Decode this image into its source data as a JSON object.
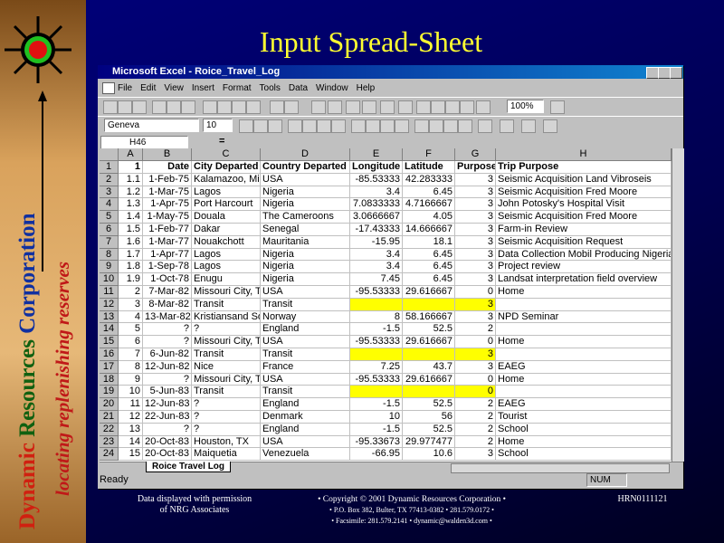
{
  "slide": {
    "title": "Input Spread-Sheet",
    "brand": {
      "word1": "Dynamic",
      "word2": "Resources",
      "word3": "Corporation",
      "tagline": "locating replenishing reserves"
    }
  },
  "window": {
    "title": "Microsoft Excel - Roice_Travel_Log",
    "menu": [
      "File",
      "Edit",
      "View",
      "Insert",
      "Format",
      "Tools",
      "Data",
      "Window",
      "Help"
    ],
    "font": "Geneva",
    "font_size": "10",
    "zoom": "100%",
    "name_box": "H46",
    "formula": "=",
    "sheet_tab": "Roice Travel Log",
    "status": "Ready",
    "status_mode": "NUM"
  },
  "table": {
    "columns": [
      "A",
      "B",
      "C",
      "D",
      "E",
      "F",
      "G",
      "H"
    ],
    "row_numbers": [
      1,
      2,
      3,
      4,
      5,
      6,
      7,
      8,
      9,
      10,
      11,
      12,
      13,
      14,
      15,
      16,
      17,
      18,
      19,
      20,
      21,
      22,
      23,
      24
    ],
    "fill": {
      "color": "#ffff00",
      "rows": [
        12,
        16,
        19
      ],
      "columns": [
        "E",
        "F",
        "G"
      ]
    },
    "rows": [
      [
        "1",
        "Date",
        "City Departed",
        "Country Departed",
        "Longitude",
        "Latitude",
        "Purpose",
        "Trip Purpose"
      ],
      [
        "1.1",
        "1-Feb-75",
        "Kalamazoo, Mic",
        "USA",
        "-85.53333",
        "42.283333",
        "3",
        "Seismic Acquisition Land Vibroseis"
      ],
      [
        "1.2",
        "1-Mar-75",
        "Lagos",
        "Nigeria",
        "3.4",
        "6.45",
        "3",
        "Seismic Acquisition Fred Moore"
      ],
      [
        "1.3",
        "1-Apr-75",
        "Port Harcourt",
        "Nigeria",
        "7.0833333",
        "4.7166667",
        "3",
        "John Potosky's Hospital Visit"
      ],
      [
        "1.4",
        "1-May-75",
        "Douala",
        "The Cameroons",
        "3.0666667",
        "4.05",
        "3",
        "Seismic Acquisition Fred Moore"
      ],
      [
        "1.5",
        "1-Feb-77",
        "Dakar",
        "Senegal",
        "-17.43333",
        "14.666667",
        "3",
        "Farm-in Review"
      ],
      [
        "1.6",
        "1-Mar-77",
        "Nouakchott",
        "Mauritania",
        "-15.95",
        "18.1",
        "3",
        "Seismic Acquisition Request"
      ],
      [
        "1.7",
        "1-Apr-77",
        "Lagos",
        "Nigeria",
        "3.4",
        "6.45",
        "3",
        "Data Collection Mobil Producing Nigeria"
      ],
      [
        "1.8",
        "1-Sep-78",
        "Lagos",
        "Nigeria",
        "3.4",
        "6.45",
        "3",
        "Project review"
      ],
      [
        "1.9",
        "1-Oct-78",
        "Enugu",
        "Nigeria",
        "7.45",
        "6.45",
        "3",
        "Landsat interpretation field overview"
      ],
      [
        "2",
        "7-Mar-82",
        "Missouri City, T",
        "USA",
        "-95.53333",
        "29.616667",
        "0",
        "Home"
      ],
      [
        "3",
        "8-Mar-82",
        "Transit",
        "Transit",
        null,
        null,
        "3",
        null
      ],
      [
        "4",
        "13-Mar-82",
        "Kristiansand So",
        "Norway",
        "8",
        "58.166667",
        "3",
        "NPD Seminar"
      ],
      [
        "5",
        "?",
        "?",
        "England",
        "-1.5",
        "52.5",
        "2",
        null
      ],
      [
        "6",
        "?",
        "Missouri City, T",
        "USA",
        "-95.53333",
        "29.616667",
        "0",
        "Home"
      ],
      [
        "7",
        "6-Jun-82",
        "Transit",
        "Transit",
        null,
        null,
        "3",
        null
      ],
      [
        "8",
        "12-Jun-82",
        "Nice",
        "France",
        "7.25",
        "43.7",
        "3",
        "EAEG"
      ],
      [
        "9",
        "?",
        "Missouri City, T",
        "USA",
        "-95.53333",
        "29.616667",
        "0",
        "Home"
      ],
      [
        "10",
        "5-Jun-83",
        "Transit",
        "Transit",
        null,
        null,
        "0",
        null
      ],
      [
        "11",
        "12-Jun-83",
        "?",
        "England",
        "-1.5",
        "52.5",
        "2",
        "EAEG"
      ],
      [
        "12",
        "22-Jun-83",
        "?",
        "Denmark",
        "10",
        "56",
        "2",
        "Tourist"
      ],
      [
        "13",
        "?",
        "?",
        "England",
        "-1.5",
        "52.5",
        "2",
        "School"
      ],
      [
        "14",
        "20-Oct-83",
        "Houston, TX",
        "USA",
        "-95.33673",
        "29.977477",
        "2",
        "Home"
      ],
      [
        "15",
        "20-Oct-83",
        "Maiquetia",
        "Venezuela",
        "-66.95",
        "10.6",
        "3",
        "School"
      ]
    ]
  },
  "footer": {
    "permission": [
      "Data displayed with permission",
      "of NRG Associates"
    ],
    "copyright": [
      "• Copyright © 2001 Dynamic Resources Corporation •",
      "• P.O. Box 382, Bulter, TX 77413-0382 • 281.579.0172 •",
      "• Facsimile: 281.579.2141 • dynamic@walden3d.com •"
    ],
    "code": "HRN0111121"
  }
}
